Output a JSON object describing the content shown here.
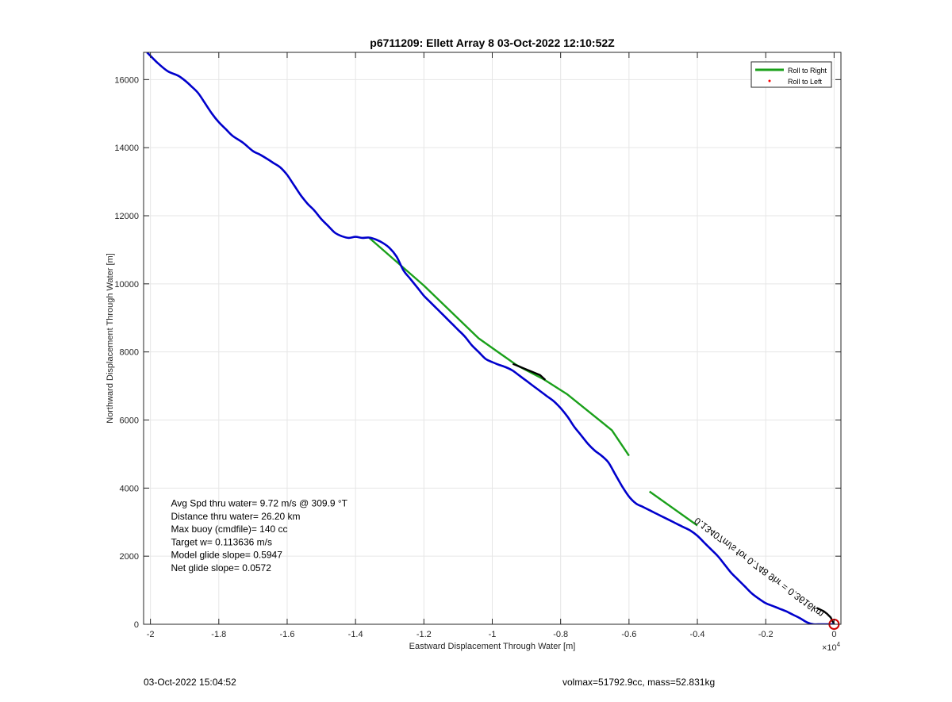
{
  "chart_data": {
    "type": "line",
    "title": "p6711209: Ellett Array 8 03-Oct-2022 12:10:52Z",
    "xlabel": "Eastward Displacement Through Water [m]",
    "ylabel": "Northward Displacement Through Water [m]",
    "x_exponent_label": "×10",
    "x_exponent_power": "4",
    "xlim": [
      -2.02,
      0.02
    ],
    "ylim": [
      0,
      16800
    ],
    "xticks": [
      -2,
      -1.8,
      -1.6,
      -1.4,
      -1.2,
      -1,
      -0.8,
      -0.6,
      -0.4,
      -0.2,
      0
    ],
    "xtick_labels": [
      "-2",
      "-1.8",
      "-1.6",
      "-1.4",
      "-1.2",
      "-1",
      "-0.8",
      "-0.6",
      "-0.4",
      "-0.2",
      "0"
    ],
    "yticks": [
      0,
      2000,
      4000,
      6000,
      8000,
      10000,
      12000,
      14000,
      16000
    ],
    "ytick_labels": [
      "0",
      "2000",
      "4000",
      "6000",
      "8000",
      "10000",
      "12000",
      "14000",
      "16000"
    ],
    "grid": true,
    "legend": {
      "position": "top-right",
      "entries": [
        {
          "name": "Roll to Right",
          "color": "#1aa01a",
          "marker": "line"
        },
        {
          "name": "Roll to Left",
          "color": "#ff0000",
          "marker": "dot"
        }
      ]
    },
    "series": [
      {
        "name": "Roll to Right",
        "color": "#1aa01a",
        "segments": [
          [
            [
              -1.36,
              11350
            ],
            [
              -1.2,
              9950
            ],
            [
              -1.04,
              8400
            ],
            [
              -0.93,
              7620
            ],
            [
              -0.85,
              7200
            ],
            [
              -0.78,
              6750
            ],
            [
              -0.65,
              5700
            ],
            [
              -0.6,
              4950
            ]
          ],
          [
            [
              -0.54,
              3900
            ],
            [
              -0.4,
              2900
            ]
          ]
        ]
      },
      {
        "color": "#000000",
        "segments": [
          [
            [
              -0.94,
              7650
            ],
            [
              -0.86,
              7320
            ],
            [
              -0.845,
              7180
            ]
          ],
          [
            [
              -0.05,
              480
            ],
            [
              -0.03,
              380
            ],
            [
              -0.02,
              300
            ],
            [
              -0.01,
              200
            ],
            [
              0,
              0
            ]
          ]
        ]
      },
      {
        "color": "#0000cc",
        "x": [
          -2.01,
          -1.98,
          -1.95,
          -1.92,
          -1.9,
          -1.88,
          -1.86,
          -1.84,
          -1.82,
          -1.8,
          -1.78,
          -1.76,
          -1.73,
          -1.7,
          -1.68,
          -1.66,
          -1.64,
          -1.62,
          -1.6,
          -1.58,
          -1.56,
          -1.54,
          -1.52,
          -1.5,
          -1.48,
          -1.46,
          -1.44,
          -1.42,
          -1.4,
          -1.38,
          -1.36,
          -1.34,
          -1.32,
          -1.3,
          -1.28,
          -1.26,
          -1.24,
          -1.22,
          -1.2,
          -1.18,
          -1.16,
          -1.14,
          -1.12,
          -1.1,
          -1.08,
          -1.06,
          -1.04,
          -1.02,
          -1.0,
          -0.98,
          -0.96,
          -0.94,
          -0.92,
          -0.9,
          -0.88,
          -0.86,
          -0.84,
          -0.82,
          -0.8,
          -0.78,
          -0.76,
          -0.74,
          -0.72,
          -0.7,
          -0.68,
          -0.66,
          -0.64,
          -0.62,
          -0.6,
          -0.58,
          -0.56,
          -0.54,
          -0.52,
          -0.5,
          -0.48,
          -0.46,
          -0.44,
          -0.42,
          -0.4,
          -0.38,
          -0.36,
          -0.34,
          -0.32,
          -0.3,
          -0.28,
          -0.26,
          -0.24,
          -0.22,
          -0.2,
          -0.18,
          -0.16,
          -0.14,
          -0.12,
          -0.1,
          -0.08,
          -0.06,
          -0.04,
          -0.02,
          0.0
        ],
        "y": [
          16800,
          16500,
          16250,
          16120,
          15980,
          15800,
          15600,
          15300,
          15000,
          14750,
          14550,
          14350,
          14150,
          13900,
          13800,
          13680,
          13550,
          13420,
          13200,
          12900,
          12600,
          12350,
          12150,
          11900,
          11700,
          11500,
          11400,
          11350,
          11380,
          11350,
          11360,
          11300,
          11200,
          11050,
          10800,
          10400,
          10150,
          9900,
          9650,
          9450,
          9250,
          9050,
          8850,
          8650,
          8450,
          8200,
          8000,
          7800,
          7700,
          7620,
          7550,
          7450,
          7300,
          7150,
          7000,
          6850,
          6700,
          6550,
          6350,
          6100,
          5800,
          5550,
          5300,
          5100,
          4950,
          4750,
          4400,
          4050,
          3750,
          3550,
          3450,
          3350,
          3250,
          3150,
          3050,
          2950,
          2850,
          2750,
          2600,
          2400,
          2200,
          2000,
          1750,
          1500,
          1300,
          1100,
          900,
          750,
          620,
          540,
          460,
          380,
          280,
          180,
          60,
          0,
          0,
          0,
          0
        ]
      }
    ],
    "annotations": [
      {
        "text": "Avg Spd thru water=  9.72 m/s @ 309.9 °T",
        "x": -1.94,
        "y": 3460
      },
      {
        "text": "Distance thru water= 26.20 km",
        "x": -1.94,
        "y": 3080
      },
      {
        "text": "Max buoy (cmdfile)= 140 cc",
        "x": -1.94,
        "y": 2700
      },
      {
        "text": "Target w= 0.113636 m/s",
        "x": -1.94,
        "y": 2320
      },
      {
        "text": "Model glide slope= 0.5947",
        "x": -1.94,
        "y": 1940
      },
      {
        "text": "Net glide slope= 0.0572",
        "x": -1.94,
        "y": 1560
      },
      {
        "text": "0.13407m/s for 0.748 9hr = 0.3616km",
        "x": -0.4,
        "y": 3150,
        "angle": 37
      }
    ],
    "marker_end": {
      "x": 0,
      "y": 0,
      "color": "#cc0000"
    }
  },
  "footer": {
    "left_timestamp": "03-Oct-2022 15:04:52",
    "right_info": "volmax=51792.9cc, mass=52.831kg"
  }
}
